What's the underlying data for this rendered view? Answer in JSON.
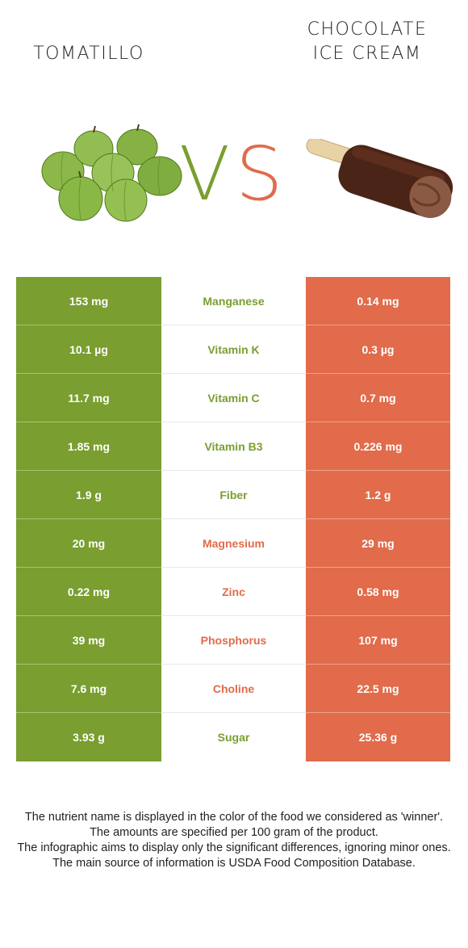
{
  "header": {
    "left_title": "TOMATILLO",
    "right_title_line1": "CHOCOLATE",
    "right_title_line2": "ICE CREAM",
    "vs_v": "V",
    "vs_s": "S"
  },
  "colors": {
    "tomatillo_green": "#7a9e2f",
    "icecream_orange": "#e16b4a"
  },
  "images": {
    "left": "tomatillo-image",
    "right": "chocolate-ice-cream-bar-image"
  },
  "table": {
    "rows": [
      {
        "left": "153 mg",
        "nutrient": "Manganese",
        "right": "0.14 mg",
        "winner": "left"
      },
      {
        "left": "10.1 µg",
        "nutrient": "Vitamin K",
        "right": "0.3 µg",
        "winner": "left"
      },
      {
        "left": "11.7 mg",
        "nutrient": "Vitamin C",
        "right": "0.7 mg",
        "winner": "left"
      },
      {
        "left": "1.85 mg",
        "nutrient": "Vitamin B3",
        "right": "0.226 mg",
        "winner": "left"
      },
      {
        "left": "1.9 g",
        "nutrient": "Fiber",
        "right": "1.2 g",
        "winner": "left"
      },
      {
        "left": "20 mg",
        "nutrient": "Magnesium",
        "right": "29 mg",
        "winner": "right"
      },
      {
        "left": "0.22 mg",
        "nutrient": "Zinc",
        "right": "0.58 mg",
        "winner": "right"
      },
      {
        "left": "39 mg",
        "nutrient": "Phosphorus",
        "right": "107 mg",
        "winner": "right"
      },
      {
        "left": "7.6 mg",
        "nutrient": "Choline",
        "right": "22.5 mg",
        "winner": "right"
      },
      {
        "left": "3.93 g",
        "nutrient": "Sugar",
        "right": "25.36 g",
        "winner": "left"
      }
    ]
  },
  "footer": {
    "line1": "The nutrient name is displayed in the color of the food we considered as 'winner'.",
    "line2": "The amounts are specified per 100 gram of the product.",
    "line3": "The infographic aims to display only the significant differences, ignoring minor ones.",
    "line4": "The main source of information is USDA Food Composition Database."
  }
}
